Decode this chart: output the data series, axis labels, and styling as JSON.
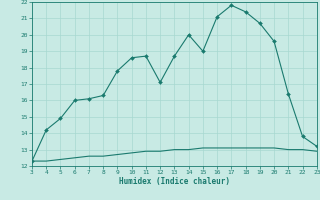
{
  "xlabel": "Humidex (Indice chaleur)",
  "x": [
    3,
    4,
    5,
    6,
    7,
    8,
    9,
    10,
    11,
    12,
    13,
    14,
    15,
    16,
    17,
    18,
    19,
    20,
    21,
    22,
    23
  ],
  "y_main": [
    12.3,
    14.2,
    14.9,
    16.0,
    16.1,
    16.3,
    17.8,
    18.6,
    18.7,
    17.1,
    18.7,
    20.0,
    19.0,
    21.1,
    21.8,
    21.4,
    20.7,
    19.6,
    16.4,
    13.8,
    13.2
  ],
  "y_base": [
    12.3,
    12.3,
    12.4,
    12.5,
    12.6,
    12.6,
    12.7,
    12.8,
    12.9,
    12.9,
    13.0,
    13.0,
    13.1,
    13.1,
    13.1,
    13.1,
    13.1,
    13.1,
    13.0,
    13.0,
    12.9
  ],
  "line_color": "#1a7a6e",
  "bg_color": "#c8eae4",
  "grid_color": "#a8d8d0",
  "ylim": [
    12,
    22
  ],
  "xlim": [
    3,
    23
  ],
  "yticks": [
    12,
    13,
    14,
    15,
    16,
    17,
    18,
    19,
    20,
    21,
    22
  ],
  "xticks": [
    3,
    4,
    5,
    6,
    7,
    8,
    9,
    10,
    11,
    12,
    13,
    14,
    15,
    16,
    17,
    18,
    19,
    20,
    21,
    22,
    23
  ],
  "marker_size": 2.0,
  "line_width": 0.8
}
